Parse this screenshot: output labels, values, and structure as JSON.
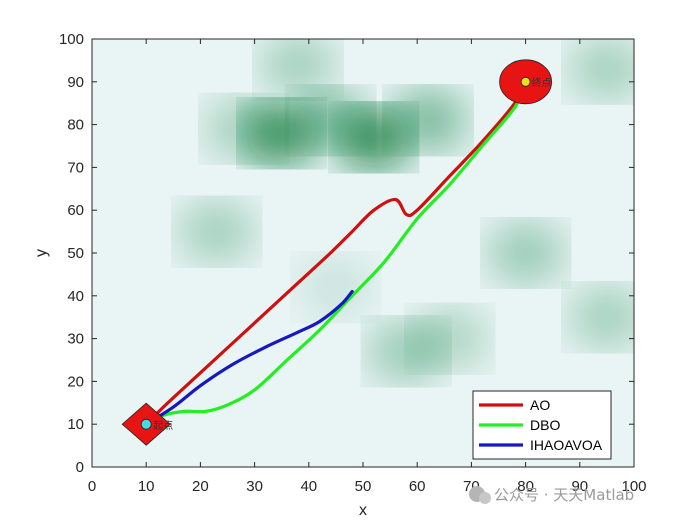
{
  "chart_data": {
    "type": "line",
    "xlabel": "x",
    "ylabel": "y",
    "xlim": [
      0,
      100
    ],
    "ylim": [
      0,
      100
    ],
    "xticks": [
      0,
      10,
      20,
      30,
      40,
      50,
      60,
      70,
      80,
      90,
      100
    ],
    "yticks": [
      0,
      10,
      20,
      30,
      40,
      50,
      60,
      70,
      80,
      90,
      100
    ],
    "legend_position": "bottom-right",
    "start": {
      "x": 10,
      "y": 10,
      "label": "起点"
    },
    "goal": {
      "x": 80,
      "y": 90,
      "label": "终点"
    },
    "background_colors": {
      "base": "#e9f4f4",
      "peak": "#0a7a3c"
    },
    "series": [
      {
        "name": "AO",
        "color": "#d01010",
        "points": [
          [
            10,
            10
          ],
          [
            14,
            15
          ],
          [
            20,
            22
          ],
          [
            26,
            29
          ],
          [
            32,
            36
          ],
          [
            38,
            43
          ],
          [
            44,
            50
          ],
          [
            48,
            55
          ],
          [
            52,
            60
          ],
          [
            56,
            62.5
          ],
          [
            58,
            59
          ],
          [
            60,
            60
          ],
          [
            66,
            68
          ],
          [
            72,
            76
          ],
          [
            78,
            85
          ],
          [
            80,
            90
          ]
        ]
      },
      {
        "name": "DBO",
        "color": "#22ee22",
        "points": [
          [
            10,
            10
          ],
          [
            13,
            12
          ],
          [
            17,
            13
          ],
          [
            21,
            13
          ],
          [
            25,
            14.5
          ],
          [
            30,
            18
          ],
          [
            36,
            25
          ],
          [
            42,
            32
          ],
          [
            48,
            40
          ],
          [
            54,
            48
          ],
          [
            60,
            58
          ],
          [
            66,
            66
          ],
          [
            72,
            75
          ],
          [
            78,
            84
          ],
          [
            80,
            90
          ]
        ]
      },
      {
        "name": "IHAOAVOA",
        "color": "#1818c0",
        "points": [
          [
            10,
            10
          ],
          [
            15,
            14
          ],
          [
            20,
            19
          ],
          [
            26,
            24
          ],
          [
            32,
            28
          ],
          [
            38,
            31.5
          ],
          [
            42,
            34
          ],
          [
            46,
            38
          ],
          [
            48,
            41
          ]
        ]
      }
    ],
    "hills": [
      {
        "x": 35,
        "y": 78,
        "w": 0.9
      },
      {
        "x": 52,
        "y": 77,
        "w": 0.95
      },
      {
        "x": 44,
        "y": 81,
        "w": 0.5
      },
      {
        "x": 62,
        "y": 81,
        "w": 0.55
      },
      {
        "x": 28,
        "y": 79,
        "w": 0.35
      },
      {
        "x": 23,
        "y": 55,
        "w": 0.35
      },
      {
        "x": 80,
        "y": 50,
        "w": 0.4
      },
      {
        "x": 58,
        "y": 27,
        "w": 0.4
      },
      {
        "x": 66,
        "y": 30,
        "w": 0.3
      },
      {
        "x": 95,
        "y": 93,
        "w": 0.35
      },
      {
        "x": 38,
        "y": 94,
        "w": 0.35
      },
      {
        "x": 95,
        "y": 35,
        "w": 0.35
      },
      {
        "x": 45,
        "y": 42,
        "w": 0.15
      }
    ]
  },
  "watermark": "公众号 · 天天Matlab"
}
